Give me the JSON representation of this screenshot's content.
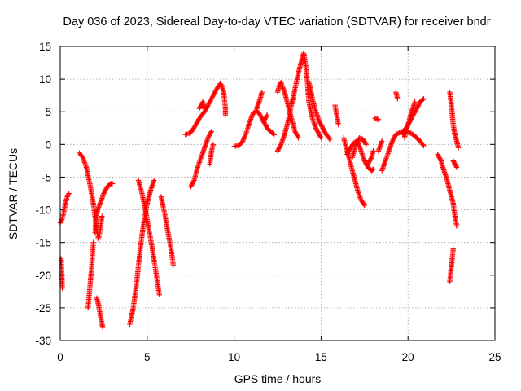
{
  "chart_data": {
    "type": "scatter",
    "title": "Day 036 of 2023, Sidereal Day-to-day VTEC variation (SDTVAR) for receiver bndr",
    "xlabel": "GPS time / hours",
    "ylabel": "SDTVAR / TECUs",
    "xlim": [
      0,
      25
    ],
    "ylim": [
      -30,
      15
    ],
    "xticks": [
      "0",
      "5",
      "10",
      "15",
      "20",
      "25"
    ],
    "yticks": [
      "-30",
      "-25",
      "-20",
      "-15",
      "-10",
      "-5",
      "0",
      "5",
      "10",
      "15"
    ],
    "grid": true,
    "marker": "plus",
    "color": "#ff0000",
    "series": [
      {
        "segments": [
          [
            [
              0.0,
              -12.0
            ],
            [
              0.1,
              -11.5
            ],
            [
              0.2,
              -10.5
            ],
            [
              0.3,
              -9.0
            ],
            [
              0.4,
              -8.0
            ],
            [
              0.5,
              -7.5
            ]
          ],
          [
            [
              0.05,
              -17.5
            ],
            [
              0.08,
              -19.0
            ],
            [
              0.1,
              -20.5
            ],
            [
              0.12,
              -22.0
            ]
          ],
          [
            [
              1.1,
              -1.3
            ],
            [
              1.3,
              -2.0
            ],
            [
              1.5,
              -3.5
            ],
            [
              1.7,
              -6.0
            ],
            [
              1.9,
              -9.0
            ],
            [
              2.0,
              -11.0
            ],
            [
              2.1,
              -13.0
            ],
            [
              2.2,
              -14.5
            ],
            [
              2.3,
              -13.0
            ],
            [
              2.4,
              -11.0
            ]
          ],
          [
            [
              2.0,
              -13.5
            ],
            [
              2.05,
              -11.5
            ],
            [
              2.15,
              -10.0
            ],
            [
              2.3,
              -9.0
            ],
            [
              2.5,
              -7.5
            ],
            [
              2.7,
              -6.5
            ],
            [
              2.9,
              -6.0
            ],
            [
              3.0,
              -6.0
            ]
          ],
          [
            [
              1.6,
              -25.0
            ],
            [
              1.7,
              -22.0
            ],
            [
              1.8,
              -19.0
            ],
            [
              1.85,
              -17.0
            ],
            [
              1.9,
              -15.0
            ]
          ],
          [
            [
              2.1,
              -23.5
            ],
            [
              2.2,
              -24.5
            ],
            [
              2.3,
              -26.0
            ],
            [
              2.4,
              -27.5
            ],
            [
              2.45,
              -28.0
            ]
          ],
          [
            [
              4.0,
              -27.5
            ],
            [
              4.2,
              -25.0
            ],
            [
              4.4,
              -21.0
            ],
            [
              4.6,
              -16.0
            ],
            [
              4.8,
              -12.0
            ],
            [
              5.0,
              -9.0
            ],
            [
              5.2,
              -7.0
            ],
            [
              5.4,
              -5.5
            ]
          ],
          [
            [
              4.5,
              -5.5
            ],
            [
              4.7,
              -7.5
            ],
            [
              4.9,
              -10.0
            ],
            [
              5.1,
              -13.0
            ],
            [
              5.3,
              -16.0
            ],
            [
              5.5,
              -19.5
            ],
            [
              5.7,
              -23.0
            ]
          ],
          [
            [
              5.8,
              -8.0
            ],
            [
              6.0,
              -10.5
            ],
            [
              6.2,
              -13.5
            ],
            [
              6.4,
              -16.5
            ],
            [
              6.5,
              -18.5
            ]
          ],
          [
            [
              7.2,
              1.5
            ],
            [
              7.5,
              1.8
            ],
            [
              7.8,
              3.0
            ],
            [
              8.0,
              4.0
            ],
            [
              8.3,
              5.0
            ],
            [
              8.5,
              6.0
            ],
            [
              8.8,
              7.5
            ],
            [
              9.0,
              8.5
            ],
            [
              9.2,
              9.3
            ],
            [
              9.3,
              9.0
            ],
            [
              9.4,
              8.0
            ],
            [
              9.5,
              5.5
            ],
            [
              9.5,
              4.5
            ]
          ],
          [
            [
              7.5,
              -6.5
            ],
            [
              7.7,
              -5.5
            ],
            [
              7.9,
              -3.5
            ],
            [
              8.1,
              -2.0
            ],
            [
              8.3,
              -0.5
            ],
            [
              8.5,
              1.0
            ],
            [
              8.7,
              2.0
            ]
          ],
          [
            [
              8.0,
              5.5
            ],
            [
              8.2,
              6.5
            ],
            [
              8.3,
              5.5
            ]
          ],
          [
            [
              8.6,
              -3.0
            ],
            [
              8.7,
              -1.0
            ],
            [
              8.8,
              0.0
            ]
          ],
          [
            [
              10.0,
              -0.3
            ],
            [
              10.3,
              -0.1
            ],
            [
              10.5,
              0.5
            ],
            [
              10.7,
              1.8
            ],
            [
              10.9,
              3.5
            ],
            [
              11.1,
              4.8
            ],
            [
              11.3,
              5.2
            ],
            [
              11.5,
              4.5
            ],
            [
              11.7,
              3.5
            ],
            [
              11.9,
              2.5
            ],
            [
              12.1,
              2.0
            ],
            [
              12.3,
              1.5
            ]
          ],
          [
            [
              11.3,
              5.5
            ],
            [
              11.5,
              7.0
            ],
            [
              11.6,
              8.0
            ]
          ],
          [
            [
              11.7,
              3.5
            ],
            [
              11.9,
              4.5
            ]
          ],
          [
            [
              12.5,
              -1.0
            ],
            [
              12.7,
              0.0
            ],
            [
              12.9,
              1.5
            ],
            [
              13.1,
              3.5
            ],
            [
              13.3,
              6.0
            ],
            [
              13.5,
              8.5
            ],
            [
              13.7,
              11.0
            ],
            [
              13.9,
              13.0
            ],
            [
              14.0,
              14.0
            ],
            [
              14.1,
              12.5
            ],
            [
              14.2,
              10.0
            ],
            [
              14.3,
              6.5
            ],
            [
              14.5,
              4.0
            ],
            [
              14.7,
              2.5
            ],
            [
              14.9,
              1.5
            ],
            [
              15.0,
              1.0
            ]
          ],
          [
            [
              12.5,
              8.0
            ],
            [
              12.6,
              9.0
            ],
            [
              12.7,
              9.5
            ],
            [
              12.9,
              8.0
            ],
            [
              13.1,
              6.0
            ],
            [
              13.3,
              4.0
            ],
            [
              13.5,
              2.0
            ],
            [
              13.7,
              1.0
            ]
          ],
          [
            [
              14.3,
              9.5
            ],
            [
              14.4,
              8.5
            ],
            [
              14.5,
              7.0
            ],
            [
              14.7,
              5.0
            ],
            [
              14.9,
              3.5
            ],
            [
              15.1,
              2.5
            ],
            [
              15.3,
              1.5
            ],
            [
              15.5,
              0.8
            ]
          ],
          [
            [
              15.8,
              6.0
            ],
            [
              15.9,
              4.5
            ],
            [
              16.0,
              3.0
            ]
          ],
          [
            [
              16.3,
              1.0
            ],
            [
              16.5,
              -1.0
            ],
            [
              16.7,
              -3.0
            ],
            [
              16.9,
              -5.0
            ],
            [
              17.1,
              -7.0
            ],
            [
              17.3,
              -8.5
            ],
            [
              17.5,
              -9.3
            ]
          ],
          [
            [
              16.5,
              -1.5
            ],
            [
              16.7,
              -0.5
            ],
            [
              16.9,
              0.3
            ],
            [
              17.1,
              0.5
            ],
            [
              17.3,
              -1.0
            ],
            [
              17.5,
              -2.5
            ],
            [
              17.7,
              -3.5
            ],
            [
              17.9,
              -4.0
            ],
            [
              18.0,
              -3.8
            ]
          ],
          [
            [
              16.8,
              -2.0
            ],
            [
              17.0,
              0.0
            ],
            [
              17.2,
              1.0
            ],
            [
              17.4,
              0.8
            ],
            [
              17.6,
              0.0
            ]
          ],
          [
            [
              17.7,
              -3.0
            ],
            [
              17.9,
              -2.0
            ],
            [
              18.0,
              -1.0
            ]
          ],
          [
            [
              18.1,
              4.0
            ],
            [
              18.3,
              3.8
            ]
          ],
          [
            [
              18.3,
              -1.0
            ],
            [
              18.5,
              0.5
            ]
          ],
          [
            [
              18.5,
              -4.0
            ],
            [
              18.7,
              -2.5
            ],
            [
              18.9,
              -1.0
            ],
            [
              19.1,
              0.5
            ],
            [
              19.3,
              1.5
            ],
            [
              19.5,
              1.8
            ],
            [
              19.7,
              2.0
            ],
            [
              19.9,
              2.5
            ],
            [
              20.1,
              3.5
            ],
            [
              20.3,
              4.5
            ],
            [
              20.5,
              5.5
            ],
            [
              20.7,
              6.5
            ],
            [
              20.9,
              7.0
            ]
          ],
          [
            [
              19.3,
              8.0
            ],
            [
              19.4,
              7.0
            ]
          ],
          [
            [
              19.7,
              1.5
            ],
            [
              19.9,
              2.0
            ],
            [
              20.1,
              1.8
            ],
            [
              20.3,
              1.5
            ],
            [
              20.5,
              1.0
            ],
            [
              20.7,
              0.5
            ],
            [
              20.9,
              -0.2
            ]
          ],
          [
            [
              19.8,
              1.0
            ],
            [
              20.0,
              3.0
            ],
            [
              20.2,
              5.0
            ],
            [
              20.4,
              6.5
            ]
          ],
          [
            [
              21.7,
              -1.5
            ],
            [
              21.9,
              -2.5
            ],
            [
              22.0,
              -3.5
            ],
            [
              22.2,
              -5.0
            ],
            [
              22.4,
              -7.0
            ],
            [
              22.6,
              -9.0
            ],
            [
              22.7,
              -11.0
            ],
            [
              22.8,
              -12.5
            ]
          ],
          [
            [
              22.4,
              8.0
            ],
            [
              22.5,
              6.0
            ],
            [
              22.6,
              3.0
            ],
            [
              22.7,
              1.5
            ],
            [
              22.8,
              0.5
            ],
            [
              22.9,
              -0.5
            ]
          ],
          [
            [
              22.6,
              -2.5
            ],
            [
              22.8,
              -3.5
            ]
          ],
          [
            [
              22.4,
              -21.0
            ],
            [
              22.5,
              -18.5
            ],
            [
              22.6,
              -16.0
            ]
          ]
        ]
      }
    ]
  }
}
